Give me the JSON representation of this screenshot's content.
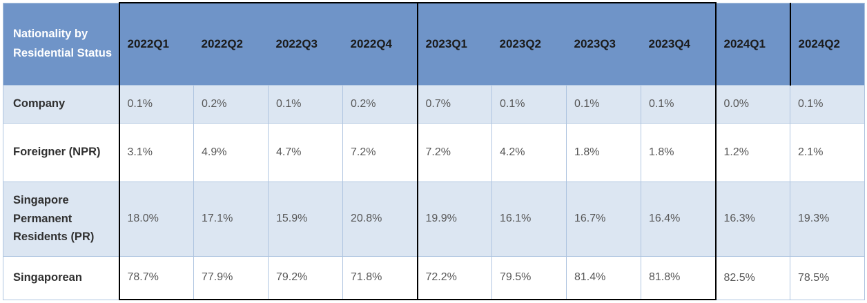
{
  "table": {
    "corner_header": "Nationality by Residential Status",
    "columns": [
      "2022Q1",
      "2022Q2",
      "2022Q3",
      "2022Q4",
      "2023Q1",
      "2023Q2",
      "2023Q3",
      "2023Q4",
      "2024Q1",
      "2024Q2"
    ],
    "rows": [
      {
        "label": "Company",
        "values": [
          "0.1%",
          "0.2%",
          "0.1%",
          "0.2%",
          "0.7%",
          "0.1%",
          "0.1%",
          "0.1%",
          "0.0%",
          "0.1%"
        ]
      },
      {
        "label": "Foreigner (NPR)",
        "values": [
          "3.1%",
          "4.9%",
          "4.7%",
          "7.2%",
          "7.2%",
          "4.2%",
          "1.8%",
          "1.8%",
          "1.2%",
          "2.1%"
        ]
      },
      {
        "label": "Singapore Permanent Residents (PR)",
        "values": [
          "18.0%",
          "17.1%",
          "15.9%",
          "20.8%",
          "19.9%",
          "16.1%",
          "16.7%",
          "16.4%",
          "16.3%",
          "19.3%"
        ]
      },
      {
        "label": "Singaporean",
        "values": [
          "78.7%",
          "77.9%",
          "79.2%",
          "71.8%",
          "72.2%",
          "79.5%",
          "81.4%",
          "81.8%",
          "82.5%",
          "78.5%"
        ]
      }
    ],
    "colors": {
      "header_bg": "#6f94c8",
      "band_row_bg": "#dce6f2",
      "plain_row_bg": "#ffffff",
      "group_border": "#000000",
      "grid_border": "#aec4e0",
      "header_text": "#1b1b1b",
      "corner_text": "#ffffff",
      "label_text": "#303030",
      "value_text": "#575757"
    }
  },
  "chart_data": {
    "type": "table",
    "title": "Nationality by Residential Status",
    "unit": "%",
    "categories": [
      "2022Q1",
      "2022Q2",
      "2022Q3",
      "2022Q4",
      "2023Q1",
      "2023Q2",
      "2023Q3",
      "2023Q4",
      "2024Q1",
      "2024Q2"
    ],
    "series": [
      {
        "name": "Company",
        "values": [
          0.1,
          0.2,
          0.1,
          0.2,
          0.7,
          0.1,
          0.1,
          0.1,
          0.0,
          0.1
        ]
      },
      {
        "name": "Foreigner (NPR)",
        "values": [
          3.1,
          4.9,
          4.7,
          7.2,
          7.2,
          4.2,
          1.8,
          1.8,
          1.2,
          2.1
        ]
      },
      {
        "name": "Singapore Permanent Residents (PR)",
        "values": [
          18.0,
          17.1,
          15.9,
          20.8,
          19.9,
          16.1,
          16.7,
          16.4,
          16.3,
          19.3
        ]
      },
      {
        "name": "Singaporean",
        "values": [
          78.7,
          77.9,
          79.2,
          71.8,
          72.2,
          79.5,
          81.4,
          81.8,
          82.5,
          78.5
        ]
      }
    ],
    "layout": {
      "year_groups_outlined_black": [
        "2022",
        "2023"
      ],
      "extra_black_divider_header_only": "between 2024Q1 and 2024Q2",
      "banded_rows": true
    }
  }
}
